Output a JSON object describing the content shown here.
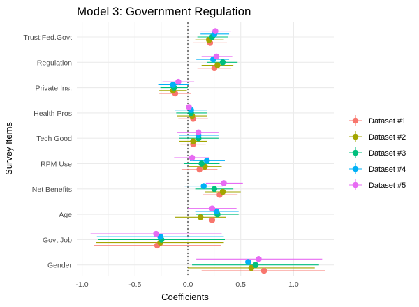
{
  "chart_data": {
    "type": "scatter",
    "subtype": "coefficient-plot",
    "title": "Model 3: Government Regulation",
    "xlabel": "Coefficients",
    "ylabel": "Survey Items",
    "xlim": [
      -1.05,
      1.38
    ],
    "x_ticks": [
      -1.0,
      -0.5,
      0.0,
      0.5,
      1.0
    ],
    "x_tick_labels": [
      "-1.0",
      "-0.5",
      "0.0",
      "0.5",
      "1.0"
    ],
    "reference_line": 0,
    "grid": true,
    "legend_position": "right",
    "categories": [
      "Trust:Fed.Govt",
      "Regulation",
      "Private Ins.",
      "Health Pros",
      "Tech Good",
      "RPM Use",
      "Net Benefits",
      "Age",
      "Govt Job",
      "Gender"
    ],
    "series": [
      {
        "name": "Dataset #1",
        "color": "#F8766D",
        "estimate": [
          0.21,
          0.25,
          -0.12,
          0.05,
          0.05,
          0.11,
          0.3,
          0.23,
          -0.29,
          0.72
        ],
        "lower": [
          0.05,
          0.09,
          -0.27,
          -0.09,
          -0.07,
          -0.06,
          0.14,
          0.03,
          -0.89,
          0.13
        ],
        "upper": [
          0.37,
          0.41,
          0.03,
          0.19,
          0.17,
          0.28,
          0.47,
          0.43,
          0.31,
          1.3
        ]
      },
      {
        "name": "Dataset #2",
        "color": "#A3A500",
        "estimate": [
          0.2,
          0.28,
          -0.14,
          0.04,
          0.05,
          0.16,
          0.33,
          0.12,
          -0.26,
          0.6
        ],
        "lower": [
          0.07,
          0.13,
          -0.27,
          -0.1,
          -0.08,
          0.01,
          0.16,
          -0.12,
          -0.87,
          0.0
        ],
        "upper": [
          0.34,
          0.43,
          -0.01,
          0.18,
          0.18,
          0.32,
          0.5,
          0.36,
          0.34,
          1.2
        ]
      },
      {
        "name": "Dataset #3",
        "color": "#00BF7D",
        "estimate": [
          0.23,
          0.33,
          -0.13,
          0.03,
          0.1,
          0.13,
          0.25,
          0.28,
          -0.25,
          0.64
        ],
        "lower": [
          0.09,
          0.18,
          -0.26,
          -0.11,
          -0.08,
          -0.04,
          0.07,
          0.08,
          -0.85,
          0.04
        ],
        "upper": [
          0.38,
          0.47,
          0.0,
          0.18,
          0.29,
          0.3,
          0.43,
          0.48,
          0.35,
          1.24
        ]
      },
      {
        "name": "Dataset #4",
        "color": "#00B0F6",
        "estimate": [
          0.25,
          0.24,
          -0.14,
          0.03,
          0.1,
          0.18,
          0.15,
          0.27,
          -0.26,
          0.57
        ],
        "lower": [
          0.12,
          0.08,
          -0.28,
          -0.12,
          -0.08,
          0.02,
          -0.03,
          0.07,
          -0.86,
          -0.03
        ],
        "upper": [
          0.39,
          0.39,
          0.01,
          0.18,
          0.29,
          0.35,
          0.33,
          0.48,
          0.34,
          1.17
        ]
      },
      {
        "name": "Dataset #5",
        "color": "#E76BF3",
        "estimate": [
          0.26,
          0.27,
          -0.09,
          0.01,
          0.1,
          0.04,
          0.34,
          0.23,
          -0.3,
          0.67
        ],
        "lower": [
          0.12,
          0.13,
          -0.24,
          -0.15,
          -0.1,
          -0.13,
          0.17,
          0.0,
          -0.92,
          0.08
        ],
        "upper": [
          0.41,
          0.42,
          0.06,
          0.17,
          0.29,
          0.2,
          0.52,
          0.46,
          0.32,
          1.27
        ]
      }
    ]
  }
}
